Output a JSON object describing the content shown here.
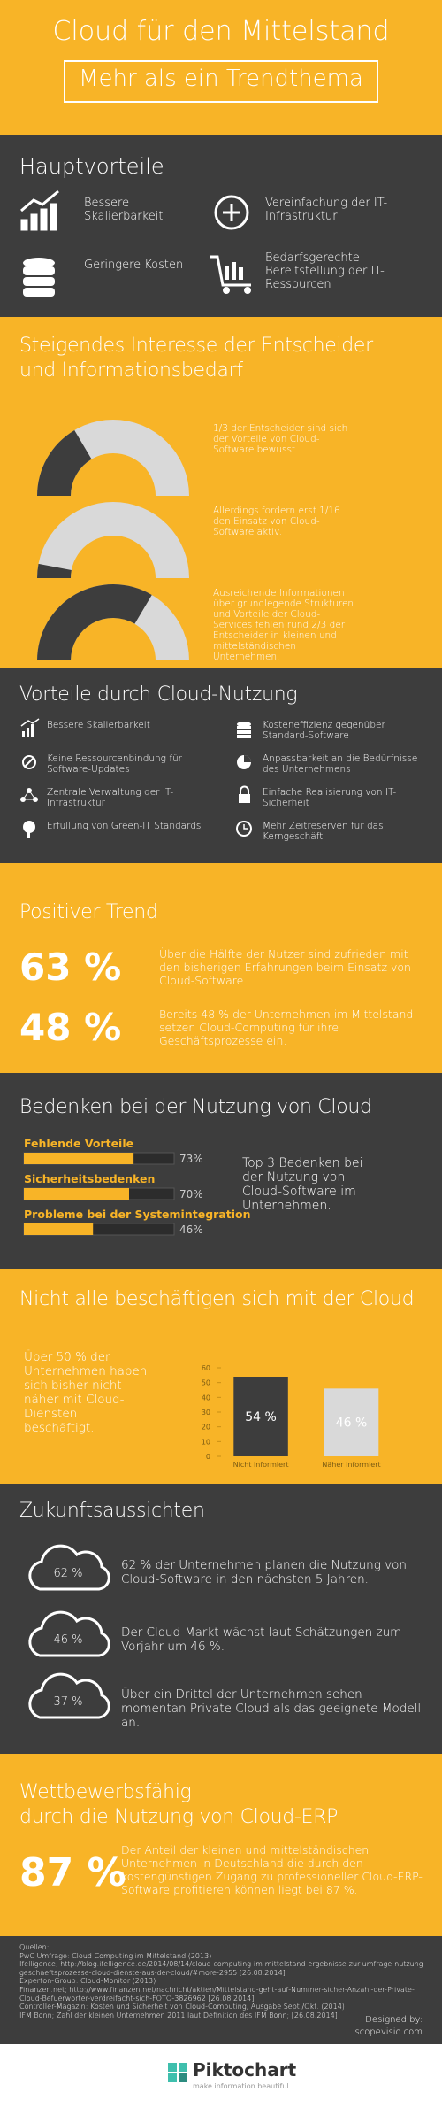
{
  "header": {
    "title": "Cloud für den Mittelstand",
    "subtitle": "Mehr als ein Trendthema"
  },
  "advantages": {
    "heading": "Hauptvorteile",
    "items": [
      "Bessere Skalierbarkeit",
      "Vereinfachung der IT-Infrastruktur",
      "Geringere Kosten",
      "Bedarfsgerechte Bereitstellung der IT-Ressourcen"
    ]
  },
  "interest": {
    "heading": [
      "Steigendes Interesse der Entscheider",
      "und Informationsbedarf"
    ],
    "gauges": [
      {
        "text": "1/3 der Entscheider sind sich der Vorteile von Cloud-Software bewusst.",
        "value": 33
      },
      {
        "text": "Allerdings fordern erst 1/16 den Einsatz von Cloud-Software aktiv.",
        "value": 6
      },
      {
        "text": "Ausreichende Informationen über grundlegende Strukturen und Vorteile der Cloud-Services fehlen rund 2/3 der Entscheider in kleinen und mittelständischen Unternehmen.",
        "value": 67
      }
    ]
  },
  "cloud_benefits": {
    "heading": "Vorteile durch Cloud-Nutzung",
    "items": [
      "Bessere Skalierbarkeit",
      "Keine Ressourcenbindung für Software-Updates",
      "Zentrale Verwaltung der IT-Infrastruktur",
      "Erfüllung von Green-IT Standards",
      "Kosteneffizienz gegenüber Standard-Software",
      "Anpassbarkeit an die Bedürfnisse des Unternehmens",
      "Einfache Realisierung von IT-Sicherheit",
      "Mehr Zeitreserven für das Kerngeschäft"
    ]
  },
  "trend": {
    "heading": "Positiver Trend",
    "items": [
      {
        "figure": "63 %",
        "text": "Über die Hälfte der Nutzer sind zufrieden mit den bisherigen Erfahrungen beim Einsatz von Cloud-Software."
      },
      {
        "figure": "48 %",
        "text": "Bereits 48 % der Unternehmen im Mittelstand setzen Cloud-Computing für ihre Geschäftsprozesse ein."
      }
    ]
  },
  "chart_data": [
    {
      "type": "hbar",
      "title": "Bedenken bei der Nutzung von Cloud",
      "categories": [
        "Fehlende Vorteile",
        "Sicherheitsbedenken",
        "Probleme bei der Systemintegration"
      ],
      "values": [
        73,
        70,
        46
      ],
      "value_labels": [
        "73%",
        "70%",
        "46%"
      ],
      "xlim": [
        0,
        100
      ],
      "color": "#f8b427",
      "annotation": "Top 3 Bedenken bei der Nutzung von Cloud-Software im Unternehmen."
    },
    {
      "type": "bar",
      "title": "Nicht alle beschäftigen sich mit der Cloud",
      "annotation": "Über 50 % der Unternehmen haben sich bisher nicht näher mit Cloud-Diensten beschäftigt.",
      "categories": [
        "Nicht informiert",
        "Näher informiert"
      ],
      "values": [
        54,
        46
      ],
      "value_labels": [
        "54 %",
        "46 %"
      ],
      "colors": [
        "#3d3d3d",
        "#d9d9d9"
      ],
      "ylim": [
        0,
        60
      ],
      "yticks": [
        0,
        10,
        20,
        30,
        40,
        50,
        60
      ]
    }
  ],
  "outlook": {
    "heading": "Zukunftsaussichten",
    "items": [
      {
        "figure": "62 %",
        "text": "62 % der Unternehmen planen die Nutzung von Cloud-Software in den nächsten 5 Jahren."
      },
      {
        "figure": "46 %",
        "text": "Der Cloud-Markt wächst laut Schätzungen zum Vorjahr um 46 %."
      },
      {
        "figure": "37 %",
        "text": "Über ein Drittel der Unternehmen sehen momentan Private Cloud als das geeignete Modell an."
      }
    ]
  },
  "erp": {
    "heading": [
      "Wettbewerbsfähig",
      "durch die Nutzung von Cloud-ERP"
    ],
    "figure": "87 %",
    "text": "Der Anteil der kleinen und mittelständischen Unternehmen in Deutschland die durch den kostengünstigen Zugang zu professioneller Cloud-ERP-Software profitieren können liegt bei 87 %."
  },
  "sources": {
    "heading": "Quellen:",
    "items": [
      "PwC Umfrage: Cloud Computing im Mittelstand (2013)",
      "Ifelligence; http://blog.ifelligence.de/2014/08/14/cloud-computing-im-mittelstand-ergebnisse-zur-umfrage-nutzung-geschaeftsprozesse-cloud-dienste-aus-der-cloud/#more-2955 [26.08.2014]",
      "Experton-Group: Cloud-Monitor (2013)",
      "Finanzen.net; http://www.finanzen.net/nachricht/aktien/Mittelstand-geht-auf-Nummer-sicher-Anzahl-der-Private-Cloud-Befuerworter-verdreifacht-sich-FOTO-3826962 [26.08.2014]",
      "Controller-Magazin: Kosten und Sicherheit von Cloud-Computing, Ausgabe Sept./Okt. (2014)",
      "IFM Bonn; Zahl der kleinen Unternehmen 2011 laut Definition des IFM Bonn; [26.08.2014]"
    ],
    "designed_by": "Designed by:",
    "designer": "scopevisio.com"
  },
  "footer": {
    "brand": "Piktochart",
    "tagline": "make information beautiful"
  }
}
